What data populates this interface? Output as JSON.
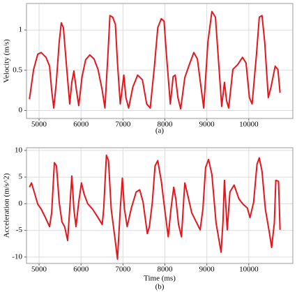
{
  "chart_data": [
    {
      "type": "line",
      "ylabel": "Velocity (m/s)",
      "caption": "(a)",
      "color": "#e8141b",
      "grid": true,
      "xlim": [
        4700,
        11050
      ],
      "ylim": [
        -0.1,
        1.33
      ],
      "xticks": [
        5000,
        6000,
        7000,
        8000,
        9000,
        10000
      ],
      "yticks": [
        0,
        0.5,
        1
      ],
      "x": [
        4770,
        4870,
        4970,
        5050,
        5165,
        5250,
        5300,
        5350,
        5410,
        5480,
        5530,
        5580,
        5660,
        5730,
        5780,
        5830,
        5880,
        5945,
        6025,
        6110,
        6210,
        6310,
        6405,
        6505,
        6570,
        6640,
        6690,
        6755,
        6820,
        6870,
        6935,
        7020,
        7070,
        7135,
        7235,
        7350,
        7465,
        7565,
        7650,
        7750,
        7830,
        7915,
        7980,
        8045,
        8130,
        8195,
        8245,
        8310,
        8375,
        8475,
        8590,
        8690,
        8775,
        8860,
        8925,
        9025,
        9120,
        9205,
        9270,
        9355,
        9420,
        9470,
        9520,
        9620,
        9735,
        9850,
        9935,
        10015,
        10080,
        10180,
        10250,
        10315,
        10380,
        10465,
        10530,
        10630,
        10695,
        10745
      ],
      "values": [
        0.14,
        0.51,
        0.7,
        0.72,
        0.66,
        0.55,
        0.25,
        0.03,
        0.34,
        0.85,
        1.09,
        1.03,
        0.51,
        0.08,
        0.35,
        0.49,
        0.29,
        0.06,
        0.42,
        0.63,
        0.69,
        0.64,
        0.51,
        0.25,
        0.03,
        0.68,
        1.18,
        1.16,
        1.07,
        0.59,
        0.08,
        0.44,
        0.16,
        0.03,
        0.29,
        0.44,
        0.38,
        0.08,
        0.03,
        0.55,
        1.03,
        1.14,
        1.11,
        0.64,
        0.08,
        0.42,
        0.44,
        0.16,
        0.02,
        0.41,
        0.58,
        0.72,
        0.64,
        0.29,
        0.03,
        0.85,
        1.23,
        1.16,
        0.68,
        0.05,
        0.35,
        0.12,
        0.03,
        0.51,
        0.57,
        0.66,
        0.59,
        0.16,
        0.08,
        0.68,
        1.16,
        1.18,
        0.85,
        0.16,
        0.29,
        0.55,
        0.51,
        0.22
      ]
    },
    {
      "type": "line",
      "ylabel": "Acceleration (m/s^2)",
      "xlabel": "Time (ms)",
      "caption": "(b)",
      "color": "#e8141b",
      "grid": true,
      "xlim": [
        4700,
        11050
      ],
      "ylim": [
        -11.2,
        10.5
      ],
      "xticks": [
        5000,
        6000,
        7000,
        8000,
        9000,
        10000
      ],
      "yticks": [
        -10,
        -5,
        0,
        5,
        10
      ],
      "x": [
        4770,
        4820,
        4885,
        4970,
        5050,
        5150,
        5250,
        5300,
        5365,
        5415,
        5480,
        5545,
        5610,
        5680,
        5730,
        5780,
        5830,
        5880,
        5945,
        6010,
        6075,
        6160,
        6275,
        6405,
        6505,
        6540,
        6605,
        6655,
        6720,
        6805,
        6870,
        6935,
        6985,
        7035,
        7100,
        7200,
        7315,
        7400,
        7480,
        7580,
        7630,
        7700,
        7765,
        7830,
        7915,
        7995,
        8080,
        8145,
        8210,
        8260,
        8325,
        8395,
        8445,
        8475,
        8545,
        8640,
        8760,
        8840,
        8905,
        8970,
        9040,
        9120,
        9220,
        9340,
        9385,
        9420,
        9485,
        9550,
        9650,
        9765,
        9865,
        9965,
        10030,
        10115,
        10195,
        10250,
        10315,
        10395,
        10495,
        10545,
        10610,
        10645,
        10710,
        10745
      ],
      "values": [
        3.1,
        3.9,
        2.2,
        -0.1,
        -1,
        -2.6,
        -4.3,
        -1.7,
        7.7,
        7.1,
        0.3,
        -3.4,
        -4.3,
        -6.9,
        -1,
        5.2,
        -1,
        -4.3,
        0.3,
        3.9,
        1.8,
        0,
        -1,
        -2.6,
        -3.9,
        -1,
        9.1,
        8.1,
        -1,
        -6.2,
        -10.4,
        -1,
        4.8,
        -1,
        -4.3,
        -0.8,
        2.2,
        2.6,
        0.3,
        -5.6,
        -4.3,
        0.3,
        7.1,
        8.1,
        4.2,
        -1,
        -6.2,
        -1,
        3.1,
        0.9,
        -3.9,
        -6.2,
        0.3,
        3.9,
        1.6,
        -1.7,
        -3.6,
        -4.9,
        -1,
        6.8,
        8.3,
        5.5,
        -3.6,
        -9.1,
        -3.4,
        4.4,
        -4.9,
        2.2,
        3.5,
        0.9,
        -0.1,
        -0.8,
        -2.6,
        0.3,
        7.4,
        8.6,
        6.1,
        -1,
        -5.6,
        -8.2,
        -3.6,
        4.4,
        4.2,
        -4.9
      ]
    }
  ]
}
